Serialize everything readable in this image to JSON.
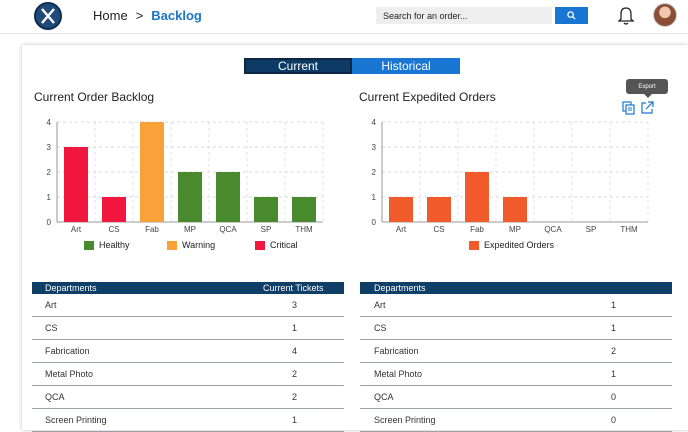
{
  "header": {
    "breadcrumb_home": "Home",
    "breadcrumb_sep": ">",
    "breadcrumb_current": "Backlog",
    "search_placeholder": "Search for an order..."
  },
  "toggle": {
    "current": "Current",
    "historical": "Historical"
  },
  "export_tooltip": "Export",
  "left_chart_title": "Current Order Backlog",
  "right_chart_title": "Current Expedited Orders",
  "chart_data": [
    {
      "type": "bar",
      "title": "Current Order Backlog",
      "categories": [
        "Art",
        "CS",
        "Fab",
        "MP",
        "QCA",
        "SP",
        "THM"
      ],
      "values": [
        3,
        1,
        4,
        2,
        2,
        1,
        1
      ],
      "status": [
        "Critical",
        "Critical",
        "Warning",
        "Healthy",
        "Healthy",
        "Healthy",
        "Healthy"
      ],
      "legend": [
        {
          "name": "Healthy",
          "color": "#4a8a2e"
        },
        {
          "name": "Warning",
          "color": "#f9a23a"
        },
        {
          "name": "Critical",
          "color": "#f2173f"
        }
      ],
      "yticks": [
        0,
        1,
        2,
        3,
        4
      ],
      "ylim": [
        0,
        4
      ],
      "legend_position": "bottom",
      "grid": true
    },
    {
      "type": "bar",
      "title": "Current Expedited Orders",
      "categories": [
        "Art",
        "CS",
        "Fab",
        "MP",
        "QCA",
        "SP",
        "THM"
      ],
      "values": [
        1,
        1,
        2,
        1,
        0,
        0,
        0
      ],
      "legend": [
        {
          "name": "Expedited Orders",
          "color": "#f15a2b"
        }
      ],
      "yticks": [
        0,
        1,
        2,
        3,
        4
      ],
      "ylim": [
        0,
        4
      ],
      "legend_position": "bottom",
      "grid": true
    }
  ],
  "left_table": {
    "headers": [
      "Departments",
      "Current Tickets"
    ],
    "rows": [
      [
        "Art",
        "3"
      ],
      [
        "CS",
        "1"
      ],
      [
        "Fabrication",
        "4"
      ],
      [
        "Metal Photo",
        "2"
      ],
      [
        "QCA",
        "2"
      ],
      [
        "Screen Printing",
        "1"
      ]
    ]
  },
  "right_table": {
    "headers": [
      "Departments",
      ""
    ],
    "rows": [
      [
        "Art",
        "1"
      ],
      [
        "CS",
        "1"
      ],
      [
        "Fabrication",
        "2"
      ],
      [
        "Metal Photo",
        "1"
      ],
      [
        "QCA",
        "0"
      ],
      [
        "Screen Printing",
        "0"
      ]
    ]
  }
}
